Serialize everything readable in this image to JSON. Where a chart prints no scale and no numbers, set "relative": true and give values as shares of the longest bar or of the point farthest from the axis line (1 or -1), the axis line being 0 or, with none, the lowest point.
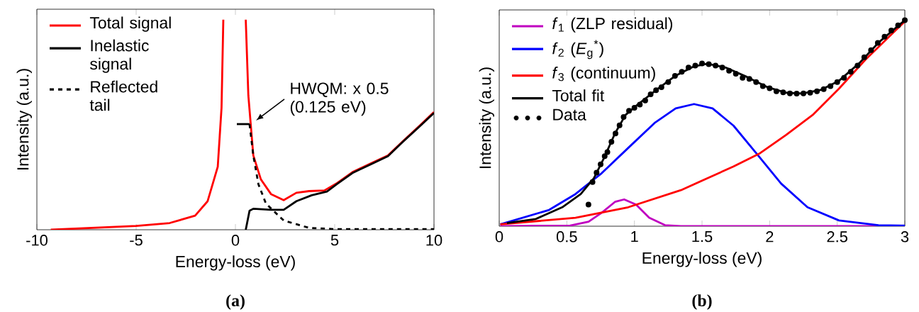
{
  "chart_data": [
    {
      "type": "line",
      "relative": true,
      "xlabel": "Energy-loss (eV)",
      "ylabel": "Intensity (a.u.)",
      "xlim": [
        -10,
        10
      ],
      "xticks": [
        -10,
        -5,
        0,
        5,
        10
      ],
      "tick_labels": "x",
      "legend": "top left",
      "series": [
        {
          "name": "Total signal",
          "color": "#ff0000",
          "line_style": "solid",
          "x": [
            -9.3,
            -5.0,
            -3.31,
            -2.03,
            -1.4,
            -0.89,
            -0.7,
            -0.61,
            0,
            0.52,
            0.65,
            0.9,
            1.28,
            1.79,
            2.43,
            3.07,
            3.71,
            4.48,
            5.12,
            5.89,
            6.91,
            7.68,
            8.45,
            9.22,
            10
          ],
          "values": [
            0,
            0.018,
            0.032,
            0.067,
            0.136,
            0.3,
            0.58,
            1.0,
            null,
            1.0,
            0.64,
            0.354,
            0.24,
            0.17,
            0.141,
            0.176,
            0.184,
            0.187,
            0.222,
            0.274,
            0.32,
            0.354,
            0.423,
            0.49,
            0.56
          ]
        },
        {
          "name": "Inelastic signal",
          "color": "#000000",
          "line_style": "solid",
          "x": [
            0.52,
            0.71,
            0.9,
            1.79,
            2.43,
            3.07,
            3.84,
            4.61,
            5.12,
            5.89,
            6.91,
            7.68,
            8.45,
            9.22,
            10
          ],
          "values": [
            0,
            0.09,
            0.1,
            0.095,
            0.095,
            0.136,
            0.164,
            0.182,
            0.218,
            0.27,
            0.316,
            0.35,
            0.42,
            0.487,
            0.556
          ]
        },
        {
          "name": "Reflected tail",
          "color": "#000000",
          "line_style": "dashed",
          "x": [
            0.71,
            0.9,
            1.16,
            1.54,
            2.43,
            3.71,
            4.99,
            10
          ],
          "values": [
            0.503,
            0.354,
            0.216,
            0.124,
            0.044,
            0.009,
            0.003,
            0.003
          ]
        },
        {
          "color": "#000000",
          "line_style": "solid",
          "x": [
            0.07,
            0.71
          ],
          "values": [
            0.503,
            0.503
          ]
        }
      ],
      "annotations": [
        {
          "text": "HWQM: x 0.5 (0.125 eV)",
          "x": 0.75,
          "y": 0.5
        },
        "(a)"
      ]
    },
    {
      "type": "line",
      "relative": true,
      "xlabel": "Energy-loss (eV)",
      "ylabel": "Intensity (a.u.)",
      "xlim": [
        0,
        3
      ],
      "xticks": [
        0,
        0.5,
        1,
        1.5,
        2,
        2.5,
        3
      ],
      "tick_labels": "x",
      "legend": "top left",
      "series": [
        {
          "name": "*f*$_{1}$ (ZLP residual)",
          "color": "#c000c0",
          "line_style": "solid",
          "x": [
            0.008,
            0.525,
            0.661,
            0.759,
            0.856,
            0.924,
            1.012,
            1.109,
            1.226,
            1.343,
            3.0
          ],
          "values": [
            0,
            0.003,
            0.022,
            0.066,
            0.118,
            0.13,
            0.105,
            0.041,
            0.005,
            0,
            0
          ]
        },
        {
          "name": "*f*$_{2}$ (*E*$_{g}$$^{*}$)",
          "color": "#0000ff",
          "line_style": "solid",
          "x": [
            0.008,
            0.369,
            0.564,
            0.759,
            0.954,
            1.149,
            1.305,
            1.441,
            1.578,
            1.733,
            1.909,
            2.085,
            2.28,
            2.513,
            2.805,
            3.0
          ],
          "values": [
            0.009,
            0.079,
            0.156,
            0.258,
            0.38,
            0.501,
            0.572,
            0.593,
            0.572,
            0.488,
            0.348,
            0.207,
            0.092,
            0.028,
            0.005,
            0.003
          ]
        },
        {
          "name": "*f*$_{3}$ (continuum)",
          "color": "#ff0000",
          "line_style": "solid",
          "x": [
            0.008,
            0.564,
            0.954,
            1.344,
            1.733,
            1.928,
            2.123,
            2.318,
            2.513,
            2.708,
            3.0
          ],
          "values": [
            0.009,
            0.041,
            0.092,
            0.175,
            0.29,
            0.354,
            0.444,
            0.54,
            0.668,
            0.808,
            0.994
          ]
        },
        {
          "name": "Total fit",
          "color": "#000000",
          "line_style": "solid",
          "x": [
            0.057,
            0.271,
            0.466,
            0.603,
            0.7,
            0.778,
            0.856,
            0.934,
            1.012,
            1.149,
            1.305,
            1.441,
            1.539,
            1.675,
            1.831,
            1.987,
            2.123,
            2.24,
            2.377,
            2.513,
            2.669,
            2.805,
            3.0
          ],
          "values": [
            0.015,
            0.035,
            0.092,
            0.156,
            0.233,
            0.335,
            0.45,
            0.54,
            0.584,
            0.655,
            0.731,
            0.776,
            0.789,
            0.77,
            0.725,
            0.674,
            0.648,
            0.644,
            0.661,
            0.706,
            0.795,
            0.891,
            1.0
          ]
        },
        {
          "name": "Data",
          "type": "scatter",
          "marker": "circle",
          "color": "#000000",
          "x": [
            0.66,
            0.69,
            0.72,
            0.75,
            0.78,
            0.8,
            0.83,
            0.86,
            0.89,
            0.92,
            0.96,
            1.0,
            1.04,
            1.08,
            1.12,
            1.16,
            1.2,
            1.25,
            1.3,
            1.35,
            1.4,
            1.45,
            1.5,
            1.55,
            1.6,
            1.65,
            1.7,
            1.75,
            1.8,
            1.85,
            1.9,
            1.95,
            2.0,
            2.05,
            2.1,
            2.15,
            2.2,
            2.25,
            2.3,
            2.35,
            2.4,
            2.45,
            2.5,
            2.55,
            2.6,
            2.65,
            2.7,
            2.75,
            2.8,
            2.85,
            2.9,
            2.95,
            3.0
          ],
          "values": [
            0.105,
            0.214,
            0.26,
            0.3,
            0.34,
            0.36,
            0.41,
            0.45,
            0.49,
            0.53,
            0.56,
            0.575,
            0.59,
            0.61,
            0.64,
            0.66,
            0.675,
            0.7,
            0.73,
            0.75,
            0.77,
            0.78,
            0.79,
            0.787,
            0.78,
            0.77,
            0.755,
            0.74,
            0.72,
            0.715,
            0.7,
            0.68,
            0.67,
            0.655,
            0.65,
            0.645,
            0.644,
            0.645,
            0.648,
            0.655,
            0.665,
            0.68,
            0.7,
            0.72,
            0.75,
            0.78,
            0.82,
            0.855,
            0.89,
            0.92,
            0.95,
            0.975,
            1.0
          ]
        }
      ],
      "annotations": [
        "(b)"
      ]
    }
  ]
}
